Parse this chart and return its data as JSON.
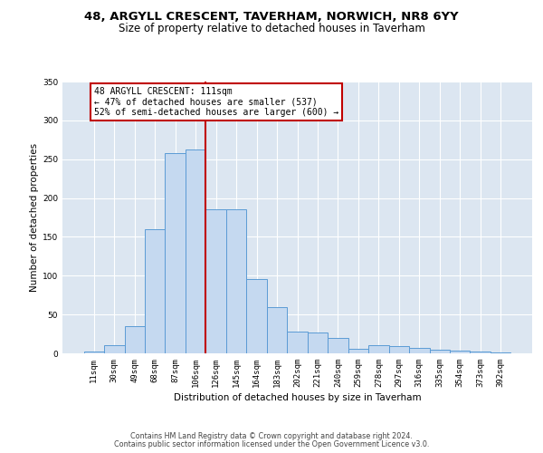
{
  "title1": "48, ARGYLL CRESCENT, TAVERHAM, NORWICH, NR8 6YY",
  "title2": "Size of property relative to detached houses in Taverham",
  "xlabel": "Distribution of detached houses by size in Taverham",
  "ylabel": "Number of detached properties",
  "categories": [
    "11sqm",
    "30sqm",
    "49sqm",
    "68sqm",
    "87sqm",
    "106sqm",
    "126sqm",
    "145sqm",
    "164sqm",
    "183sqm",
    "202sqm",
    "221sqm",
    "240sqm",
    "259sqm",
    "278sqm",
    "297sqm",
    "316sqm",
    "335sqm",
    "354sqm",
    "373sqm",
    "392sqm"
  ],
  "bar_heights": [
    2,
    10,
    35,
    160,
    258,
    262,
    185,
    185,
    96,
    60,
    28,
    27,
    20,
    6,
    10,
    9,
    7,
    5,
    3,
    2,
    1
  ],
  "bar_color": "#c5d9f0",
  "bar_edge_color": "#5b9bd5",
  "plot_bg_color": "#dce6f1",
  "vline_x": 5.5,
  "vline_color": "#c00000",
  "annotation_text": "48 ARGYLL CRESCENT: 111sqm\n← 47% of detached houses are smaller (537)\n52% of semi-detached houses are larger (600) →",
  "annotation_box_facecolor": "#ffffff",
  "annotation_box_edgecolor": "#c00000",
  "footer1": "Contains HM Land Registry data © Crown copyright and database right 2024.",
  "footer2": "Contains public sector information licensed under the Open Government Licence v3.0.",
  "ylim": [
    0,
    350
  ],
  "yticks": [
    0,
    50,
    100,
    150,
    200,
    250,
    300,
    350
  ],
  "title1_fontsize": 9.5,
  "title2_fontsize": 8.5,
  "axis_label_fontsize": 7.5,
  "ylabel_fontsize": 7.5,
  "tick_fontsize": 6.5,
  "annotation_fontsize": 7.0,
  "footer_fontsize": 5.8
}
